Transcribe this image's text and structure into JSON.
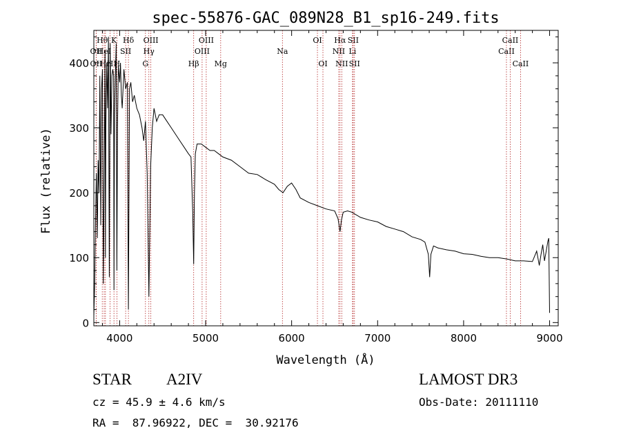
{
  "chart_data": {
    "type": "line",
    "title": "spec-55876-GAC_089N28_B1_sp16-249.fits",
    "xlabel": "Wavelength (Å)",
    "ylabel": "Flux (relative)",
    "xlim": [
      3700,
      9100
    ],
    "ylim": [
      -5,
      450
    ],
    "x_ticks": [
      4000,
      5000,
      6000,
      7000,
      8000,
      9000
    ],
    "y_ticks": [
      0,
      100,
      200,
      300,
      400
    ],
    "grid": false,
    "line_color": "#000000",
    "marker_color": "#b22222",
    "series": [
      {
        "x": [
          3700,
          3710,
          3720,
          3730,
          3740,
          3750,
          3760,
          3770,
          3780,
          3790,
          3800,
          3810,
          3820,
          3830,
          3835,
          3840,
          3850,
          3860,
          3870,
          3880,
          3890,
          3900,
          3910,
          3920,
          3930,
          3934,
          3940,
          3950,
          3960,
          3968,
          3975,
          3985,
          4000,
          4010,
          4020,
          4030,
          4050,
          4070,
          4090,
          4102,
          4115,
          4130,
          4150,
          4170,
          4200,
          4230,
          4260,
          4280,
          4300,
          4320,
          4340,
          4360,
          4380,
          4400,
          4430,
          4460,
          4500,
          4550,
          4600,
          4650,
          4700,
          4750,
          4800,
          4830,
          4850,
          4861,
          4870,
          4880,
          4900,
          4950,
          5000,
          5050,
          5100,
          5150,
          5200,
          5300,
          5400,
          5500,
          5600,
          5700,
          5800,
          5850,
          5900,
          5950,
          6000,
          6050,
          6100,
          6200,
          6300,
          6400,
          6500,
          6540,
          6563,
          6580,
          6600,
          6650,
          6700,
          6800,
          6900,
          7000,
          7100,
          7200,
          7300,
          7400,
          7500,
          7550,
          7590,
          7605,
          7620,
          7650,
          7700,
          7800,
          7900,
          8000,
          8100,
          8200,
          8300,
          8400,
          8500,
          8600,
          8700,
          8800,
          8850,
          8880,
          8900,
          8920,
          8940,
          8960,
          8980,
          8990,
          9000
        ],
        "y": [
          10,
          60,
          160,
          230,
          130,
          250,
          200,
          380,
          150,
          360,
          390,
          60,
          230,
          420,
          100,
          300,
          400,
          330,
          440,
          70,
          430,
          290,
          380,
          390,
          380,
          50,
          320,
          380,
          430,
          80,
          300,
          395,
          370,
          400,
          350,
          330,
          390,
          360,
          370,
          20,
          360,
          370,
          340,
          350,
          330,
          320,
          300,
          280,
          310,
          230,
          40,
          240,
          300,
          330,
          310,
          320,
          320,
          310,
          300,
          290,
          280,
          270,
          260,
          255,
          170,
          90,
          200,
          260,
          275,
          275,
          270,
          265,
          265,
          260,
          255,
          250,
          240,
          230,
          228,
          220,
          213,
          205,
          200,
          210,
          215,
          205,
          192,
          185,
          180,
          175,
          172,
          160,
          140,
          158,
          170,
          172,
          170,
          162,
          158,
          155,
          148,
          144,
          140,
          132,
          128,
          124,
          105,
          70,
          105,
          118,
          115,
          112,
          110,
          106,
          105,
          102,
          100,
          100,
          98,
          95,
          95,
          94,
          110,
          88,
          105,
          120,
          95,
          110,
          125,
          130,
          15
        ]
      }
    ],
    "line_markers": [
      {
        "wave": 3727,
        "label": "OII",
        "row": 2
      },
      {
        "wave": 3727,
        "label": "OII",
        "row": 3
      },
      {
        "wave": 3798,
        "label": "Hθ",
        "row": 1
      },
      {
        "wave": 3820,
        "label": "HeI",
        "row": 2
      },
      {
        "wave": 3835,
        "label": "Hη",
        "row": 3
      },
      {
        "wave": 3889,
        "label": "H",
        "row": 3
      },
      {
        "wave": 3934,
        "label": "K",
        "row": 1
      },
      {
        "wave": 3968,
        "label": "H",
        "row": 3
      },
      {
        "wave": 4070,
        "label": "SII",
        "row": 2
      },
      {
        "wave": 4102,
        "label": "Hδ",
        "row": 1
      },
      {
        "wave": 4300,
        "label": "G",
        "row": 3
      },
      {
        "wave": 4340,
        "label": "Hγ",
        "row": 2
      },
      {
        "wave": 4363,
        "label": "OIII",
        "row": 1
      },
      {
        "wave": 4861,
        "label": "Hβ",
        "row": 3
      },
      {
        "wave": 4959,
        "label": "OIII",
        "row": 2
      },
      {
        "wave": 5007,
        "label": "OIII",
        "row": 1
      },
      {
        "wave": 5175,
        "label": "Mg",
        "row": 3
      },
      {
        "wave": 5893,
        "label": "Na",
        "row": 2
      },
      {
        "wave": 6300,
        "label": "OI",
        "row": 1
      },
      {
        "wave": 6364,
        "label": "OI",
        "row": 3
      },
      {
        "wave": 6548,
        "label": "NII",
        "row": 2
      },
      {
        "wave": 6563,
        "label": "Hα",
        "row": 1
      },
      {
        "wave": 6583,
        "label": "NII",
        "row": 3
      },
      {
        "wave": 6708,
        "label": "Li",
        "row": 2
      },
      {
        "wave": 6716,
        "label": "SII",
        "row": 1
      },
      {
        "wave": 6731,
        "label": "SII",
        "row": 3
      },
      {
        "wave": 8498,
        "label": "CaII",
        "row": 2
      },
      {
        "wave": 8542,
        "label": "CaII",
        "row": 1
      },
      {
        "wave": 8662,
        "label": "CaII",
        "row": 3
      }
    ]
  },
  "info": {
    "object_class": "STAR",
    "subclass": "A2IV",
    "survey": "LAMOST DR3",
    "redshift": "cz = 45.9 ± 4.6 km/s",
    "obs_date": "Obs-Date: 20111110",
    "coords": "RA =  87.96922, DEC =  30.92176"
  }
}
